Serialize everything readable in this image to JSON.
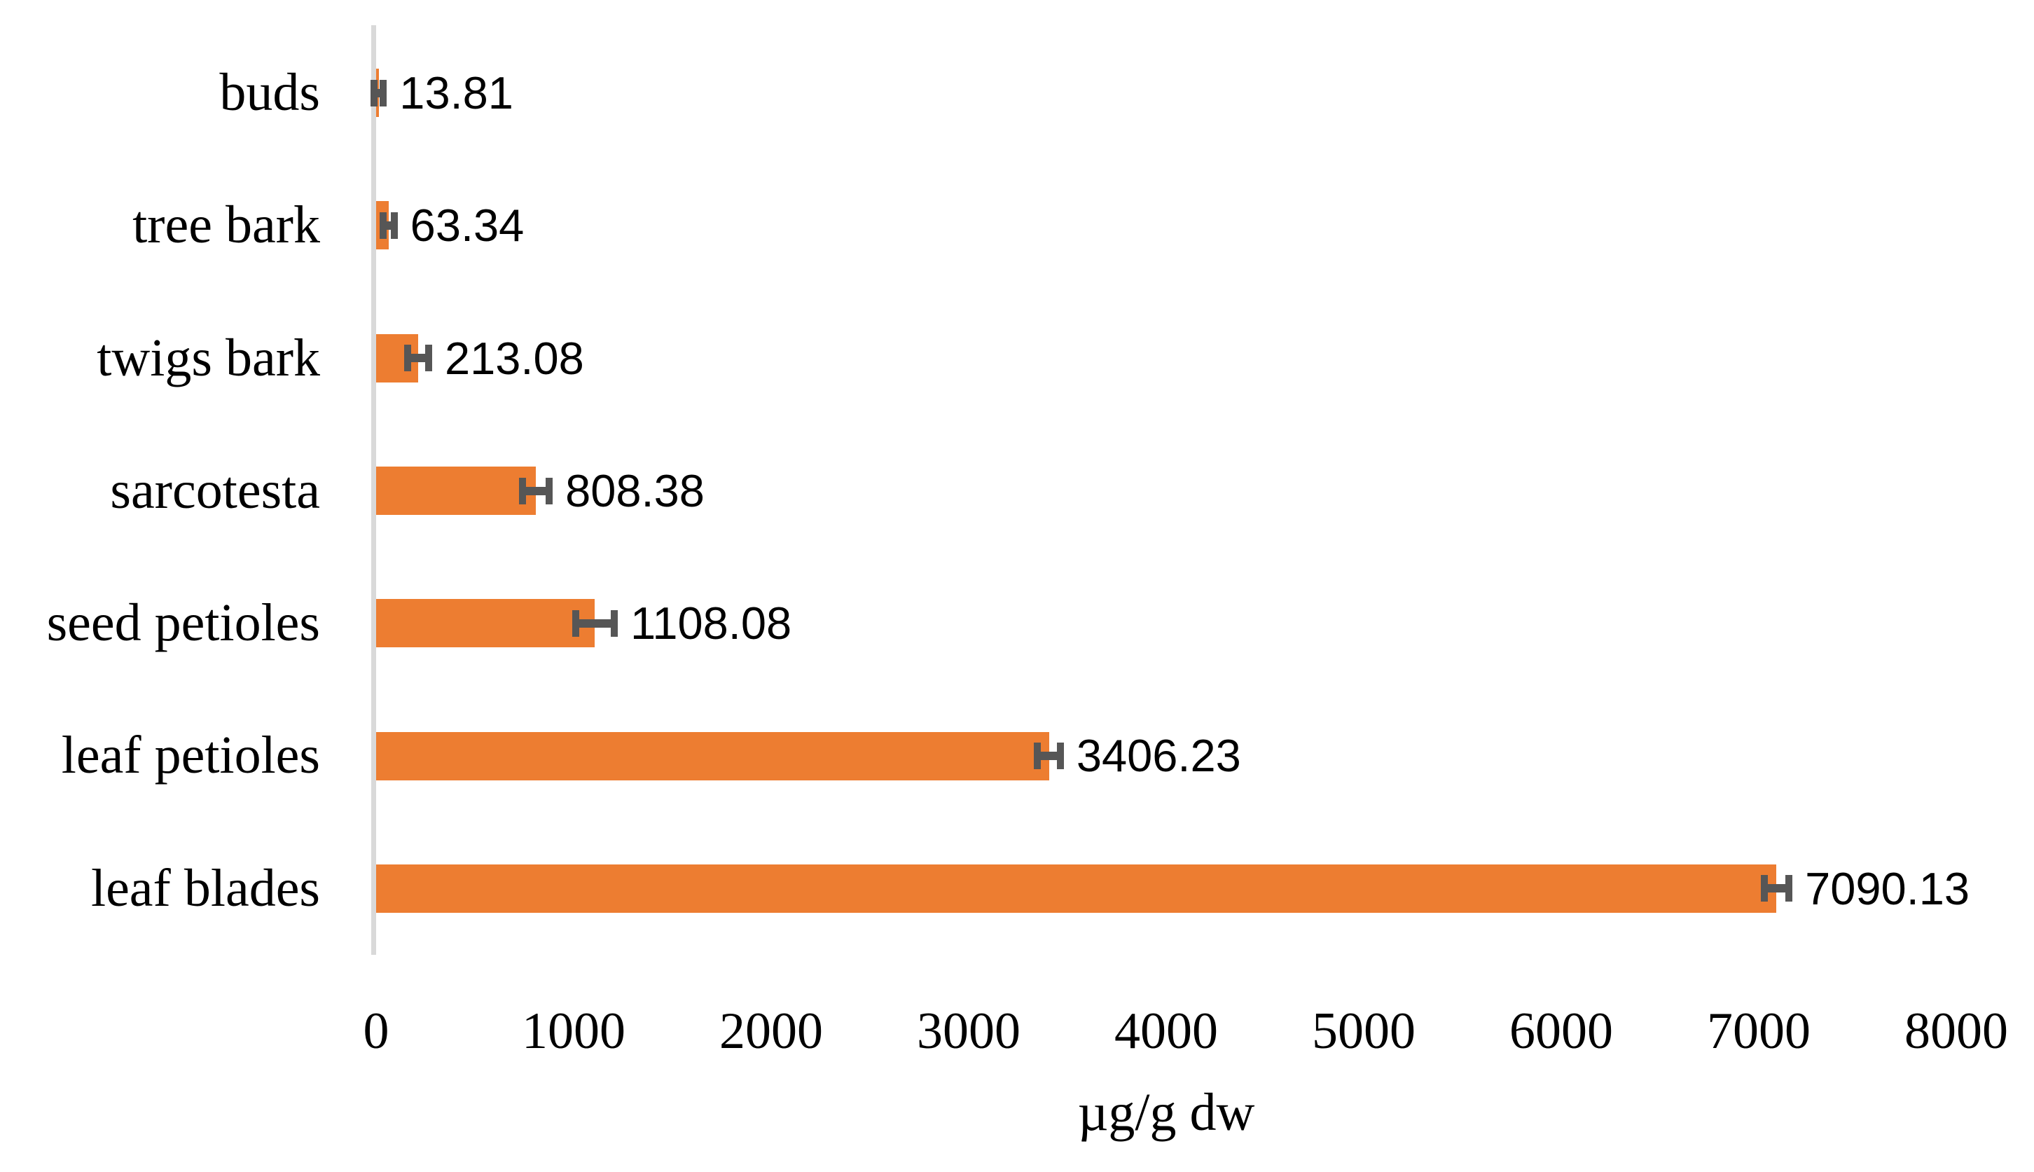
{
  "chart_data": {
    "type": "bar",
    "orientation": "horizontal",
    "title": "",
    "xlabel": "µg/g dw",
    "ylabel": "",
    "categories": [
      "buds",
      "tree bark",
      "twigs bark",
      "sarcotesta",
      "seed petioles",
      "leaf petioles",
      "leaf blades"
    ],
    "values": [
      13.81,
      63.34,
      213.08,
      808.38,
      1108.08,
      3406.23,
      7090.13
    ],
    "value_labels": [
      "13.81",
      "63.34",
      "213.08",
      "808.38",
      "1108.08",
      "3406.23",
      "7090.13"
    ],
    "error_bars": [
      5,
      10,
      35,
      50,
      80,
      40,
      45
    ],
    "xlim": [
      0,
      8000
    ],
    "x_ticks": [
      0,
      1000,
      2000,
      3000,
      4000,
      5000,
      6000,
      7000,
      8000
    ],
    "grid": false,
    "legend": false,
    "colors": {
      "bar": "#ED7D31",
      "error_bar": "#565656",
      "axis_line": "#D9D9D9",
      "text": "#000000"
    }
  }
}
